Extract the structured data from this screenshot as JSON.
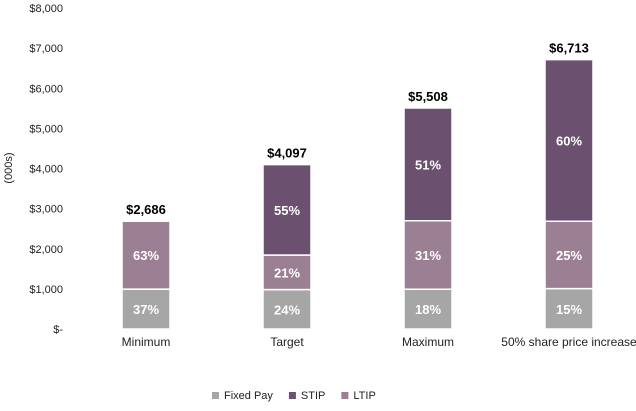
{
  "chart_data": {
    "type": "bar",
    "stacked": true,
    "ylabel": "(000s)",
    "ylim": [
      0,
      8000
    ],
    "yticks": [
      0,
      1000,
      2000,
      3000,
      4000,
      5000,
      6000,
      7000,
      8000
    ],
    "ytick_labels": [
      "$-",
      "$1,000",
      "$2,000",
      "$3,000",
      "$4,000",
      "$5,000",
      "$6,000",
      "$7,000",
      "$8,000"
    ],
    "grid": false,
    "legend_position": "bottom",
    "categories": [
      "Minimum",
      "Target",
      "Maximum",
      "50% share price increase"
    ],
    "totals": [
      2686,
      4097,
      5508,
      6713
    ],
    "total_labels": [
      "$2,686",
      "$4,097",
      "$5,508",
      "$6,713"
    ],
    "series": [
      {
        "name": "Fixed Pay",
        "color": "#a6a6a6",
        "values": [
          994,
          983,
          991,
          1007
        ],
        "labels": [
          "37%",
          "24%",
          "18%",
          "15%"
        ]
      },
      {
        "name": "LTIP",
        "color": "#9b7f93",
        "values": [
          1692,
          860,
          1707,
          1678
        ],
        "labels": [
          "63%",
          "21%",
          "31%",
          "25%"
        ]
      },
      {
        "name": "STIP",
        "color": "#6c5070",
        "values": [
          0,
          2254,
          2810,
          4028
        ],
        "labels": [
          "",
          "55%",
          "51%",
          "60%"
        ]
      }
    ],
    "legend_order": [
      "Fixed Pay",
      "STIP",
      "LTIP"
    ]
  }
}
